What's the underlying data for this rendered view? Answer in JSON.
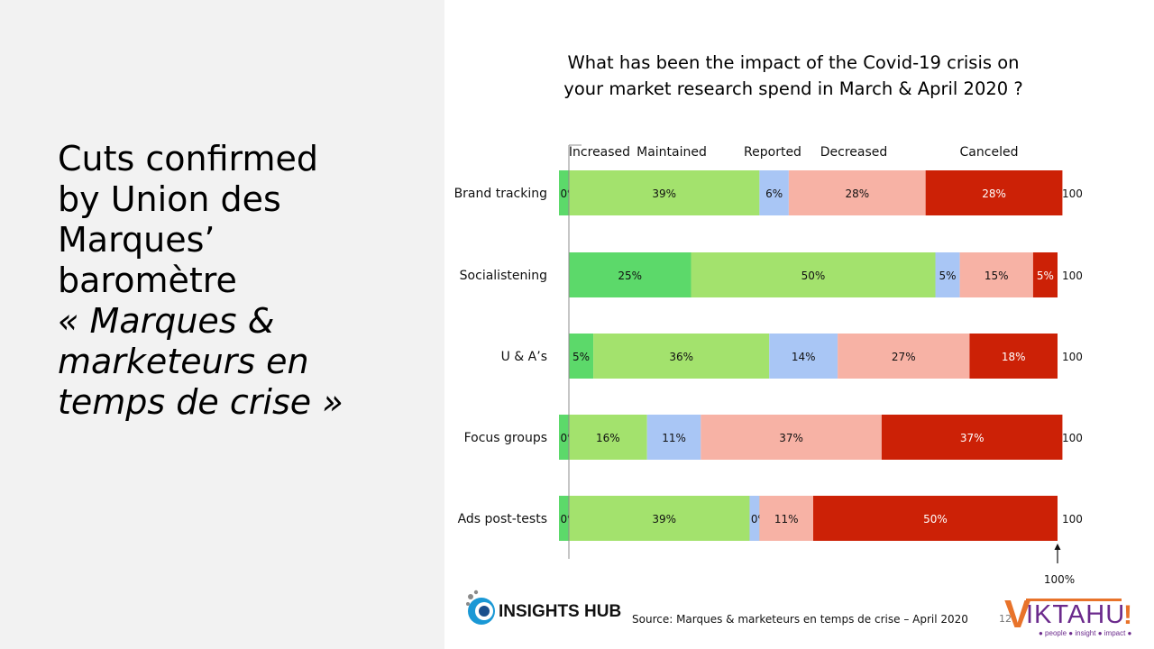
{
  "headline": {
    "line1": "Cuts confirmed",
    "line2": "by Union des",
    "line3": "Marques’",
    "line4": "baromètre",
    "line5": "« Marques &",
    "line6": "marketeurs en",
    "line7": "temps de crise »"
  },
  "chart_data": {
    "type": "bar",
    "orientation": "horizontal",
    "stacked": true,
    "title_line1": "What has been the impact of the Covid-19 crisis on",
    "title_line2": "your market research spend in March & April 2020 ?",
    "categories": [
      "Brand tracking",
      "Socialistening",
      "U & A’s",
      "Focus groups",
      "Ads post-tests"
    ],
    "series": [
      {
        "name": "Increased",
        "color": "#5cd96a",
        "values": [
          0,
          25,
          5,
          0,
          0
        ],
        "labels": [
          "0%",
          "25%",
          "5%",
          "0%",
          "0%"
        ]
      },
      {
        "name": "Maintained",
        "color": "#a3e26d",
        "values": [
          39,
          50,
          36,
          16,
          39
        ],
        "labels": [
          "39%",
          "50%",
          "36%",
          "16%",
          "39%"
        ]
      },
      {
        "name": "Reported",
        "color": "#a9c6f5",
        "values": [
          6,
          5,
          14,
          11,
          0
        ],
        "labels": [
          "6%",
          "5%",
          "14%",
          "11%",
          "0%"
        ]
      },
      {
        "name": "Decreased",
        "color": "#f7b2a5",
        "values": [
          28,
          15,
          27,
          37,
          11
        ],
        "labels": [
          "28%",
          "15%",
          "27%",
          "37%",
          "11%"
        ]
      },
      {
        "name": "Canceled",
        "color": "#cc2106",
        "values": [
          28,
          5,
          18,
          37,
          50
        ],
        "labels": [
          "28%",
          "5%",
          "18%",
          "37%",
          "50%"
        ]
      }
    ],
    "totals": [
      "100",
      "100",
      "100",
      "100",
      "100"
    ],
    "xlim": [
      0,
      100
    ],
    "axis_marker_label": "100%"
  },
  "footer": {
    "brand": "INSIGHTS HUB",
    "source": "Source: Marques & marketeurs en temps de crise – April 2020",
    "page_number": "12",
    "logo_v": "V",
    "logo_word": "IKTAHU",
    "logo_tagline": "● people ● insight ● impact ●",
    "logo_bang": "!"
  }
}
